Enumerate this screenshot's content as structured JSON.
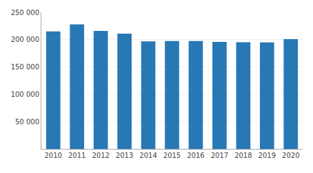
{
  "chart_data": {
    "type": "bar",
    "categories": [
      "2010",
      "2011",
      "2012",
      "2013",
      "2014",
      "2015",
      "2016",
      "2017",
      "2018",
      "2019",
      "2020"
    ],
    "values": [
      215000,
      228000,
      216000,
      211000,
      197000,
      197500,
      197500,
      196000,
      195500,
      195000,
      201000
    ],
    "color": "#2878b5",
    "ylim": [
      0,
      250000
    ],
    "yticks": [
      {
        "value": 50000,
        "label": "50 000"
      },
      {
        "value": 100000,
        "label": "100 000"
      },
      {
        "value": 150000,
        "label": "150 000"
      },
      {
        "value": 200000,
        "label": "200 000"
      },
      {
        "value": 250000,
        "label": "250 000"
      }
    ],
    "grid": true
  }
}
